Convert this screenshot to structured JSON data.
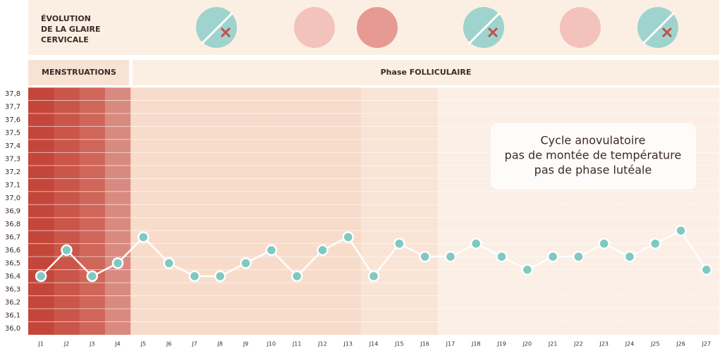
{
  "chart_data": {
    "type": "line",
    "header_title": [
      "ÉVOLUTION",
      "DE LA GLAIRE",
      "CERVICALE"
    ],
    "phases": [
      "MENSTRUATIONS",
      "Phase FOLLICULAIRE"
    ],
    "annotation": [
      "Cycle anovulatoire",
      "pas de montée de température",
      "pas de phase lutéale"
    ],
    "categories": [
      "J1",
      "J2",
      "J3",
      "J4",
      "J5",
      "J6",
      "J7",
      "J8",
      "J9",
      "J10",
      "J11",
      "J12",
      "J13",
      "J14",
      "J15",
      "J16",
      "J17",
      "J18",
      "J19",
      "J20",
      "J21",
      "J22",
      "J23",
      "J24",
      "J25",
      "J26",
      "J27"
    ],
    "series": [
      {
        "color": "#7fc9c1",
        "line_color": "#ffffff",
        "values": [
          36.4,
          36.6,
          36.4,
          36.5,
          36.7,
          36.5,
          36.4,
          36.4,
          36.5,
          36.6,
          36.4,
          36.6,
          36.7,
          36.4,
          36.65,
          36.55,
          36.55,
          36.65,
          36.55,
          36.45,
          36.55,
          36.55,
          36.65,
          36.55,
          36.65,
          36.75,
          36.45
        ]
      }
    ],
    "ylim": [
      35.95,
      37.85
    ],
    "yticks": [
      {
        "value": 36.0,
        "label": "36,0"
      },
      {
        "value": 36.1,
        "label": "36,1"
      },
      {
        "value": 36.2,
        "label": "36,2"
      },
      {
        "value": 36.3,
        "label": "36,3"
      },
      {
        "value": 36.4,
        "label": "36,4"
      },
      {
        "value": 36.5,
        "label": "36,5"
      },
      {
        "value": 36.6,
        "label": "36,6"
      },
      {
        "value": 36.7,
        "label": "36,7"
      },
      {
        "value": 36.8,
        "label": "36,8"
      },
      {
        "value": 36.9,
        "label": "36,9"
      },
      {
        "value": 37.0,
        "label": "37,0"
      },
      {
        "value": 37.1,
        "label": "37,1"
      },
      {
        "value": 37.2,
        "label": "37,2"
      },
      {
        "value": 37.3,
        "label": "37,3"
      },
      {
        "value": 37.4,
        "label": "37,4"
      },
      {
        "value": 37.5,
        "label": "37,5"
      },
      {
        "value": 37.6,
        "label": "37,6"
      },
      {
        "value": 37.7,
        "label": "37,7"
      },
      {
        "value": 37.8,
        "label": "37,8"
      }
    ],
    "grid": true
  }
}
